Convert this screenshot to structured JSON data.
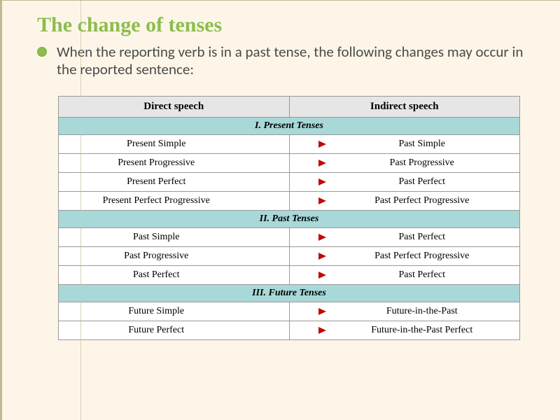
{
  "title": "The change of tenses",
  "intro": "When the reporting verb is in a past tense, the following changes may occur in the reported sentence:",
  "headers": {
    "left": "Direct speech",
    "right": "Indirect speech"
  },
  "sections": [
    {
      "label": "I. Present Tenses",
      "rows": [
        {
          "left": "Present Simple",
          "right": "Past Simple"
        },
        {
          "left": "Present Progressive",
          "right": "Past Progressive"
        },
        {
          "left": "Present Perfect",
          "right": "Past Perfect"
        },
        {
          "left": "Present Perfect Progressive",
          "right": "Past Perfect Progressive"
        }
      ]
    },
    {
      "label": "II. Past Tenses",
      "rows": [
        {
          "left": "Past Simple",
          "right": "Past Perfect"
        },
        {
          "left": "Past Progressive",
          "right": "Past Perfect Progressive"
        },
        {
          "left": "Past Perfect",
          "right": "Past Perfect"
        }
      ]
    },
    {
      "label": "III. Future Tenses",
      "rows": [
        {
          "left": "Future Simple",
          "right": "Future-in-the-Past"
        },
        {
          "left": "Future Perfect",
          "right": "Future-in-the-Past Perfect"
        }
      ]
    }
  ],
  "arrow": {
    "width": 110,
    "color_start": "#f03030",
    "color_end": "#c00808",
    "stroke_width": 2.2
  }
}
